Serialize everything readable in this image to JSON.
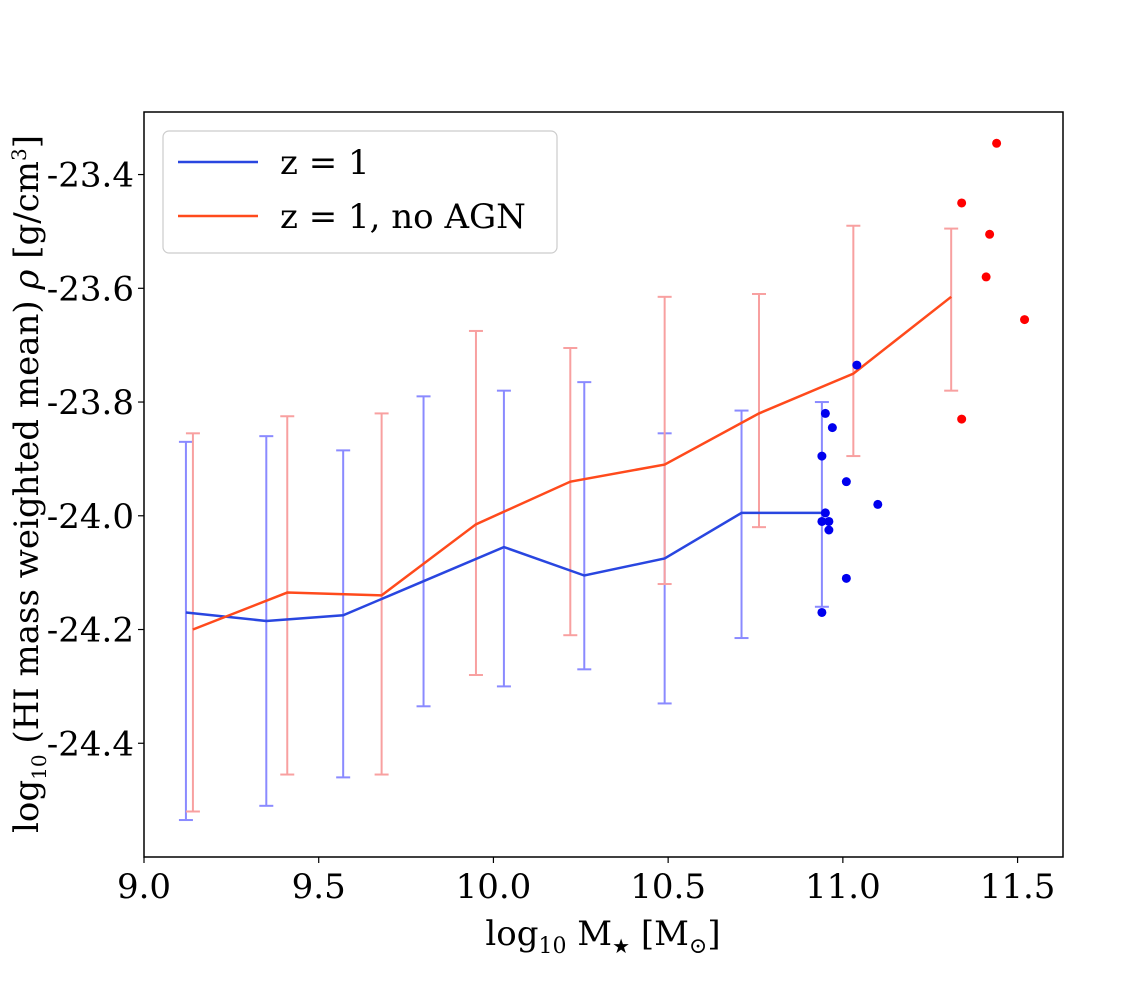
{
  "chart_data": {
    "type": "line",
    "title": "",
    "xlabel_parts": {
      "base": "log",
      "sub": "10",
      "rest": " M",
      "star": "★",
      "unit": " [M",
      "odot": "⊙",
      "close": "]"
    },
    "ylabel_parts": {
      "base": "log",
      "sub": "10",
      "rest": " (HI mass weighted mean) ",
      "rho": "ρ",
      "unit": " [g/cm",
      "sup": "3",
      "close": "]"
    },
    "xlim": [
      9.0,
      11.63
    ],
    "ylim": [
      -24.6,
      -23.29
    ],
    "xticks": [
      9.0,
      9.5,
      10.0,
      10.5,
      11.0,
      11.5
    ],
    "xtick_labels": [
      "9.0",
      "9.5",
      "10.0",
      "10.5",
      "11.0",
      "11.5"
    ],
    "yticks": [
      -24.4,
      -24.2,
      -24.0,
      -23.8,
      -23.6,
      -23.4
    ],
    "ytick_labels": [
      "-24.4",
      "-24.2",
      "-24.0",
      "-23.8",
      "-23.6",
      "-23.4"
    ],
    "legend_position": "top-left",
    "grid": false,
    "series": [
      {
        "name": "z = 1",
        "color": "#2946e0",
        "errorbar_color": "#8a8aff",
        "x": [
          9.12,
          9.35,
          9.57,
          9.8,
          10.03,
          10.26,
          10.49,
          10.71,
          10.94
        ],
        "y": [
          -24.17,
          -24.185,
          -24.175,
          -24.115,
          -24.055,
          -24.105,
          -24.075,
          -23.995,
          -23.995
        ],
        "err_low": [
          -24.535,
          -24.51,
          -24.46,
          -24.335,
          -24.3,
          -24.27,
          -24.33,
          -24.215,
          -24.16
        ],
        "err_high": [
          -23.87,
          -23.86,
          -23.885,
          -23.79,
          -23.78,
          -23.765,
          -23.855,
          -23.815,
          -23.8
        ]
      },
      {
        "name": "z = 1, no AGN",
        "color": "#ff4a1c",
        "errorbar_color": "#f8a0a0",
        "x": [
          9.14,
          9.41,
          9.68,
          9.95,
          10.22,
          10.49,
          10.76,
          11.03,
          11.31
        ],
        "y": [
          -24.2,
          -24.135,
          -24.14,
          -24.015,
          -23.94,
          -23.91,
          -23.82,
          -23.75,
          -23.615
        ],
        "err_low": [
          -24.52,
          -24.455,
          -24.455,
          -24.28,
          -24.21,
          -24.12,
          -24.02,
          -23.895,
          -23.78
        ],
        "err_high": [
          -23.855,
          -23.825,
          -23.82,
          -23.675,
          -23.705,
          -23.615,
          -23.61,
          -23.49,
          -23.495
        ]
      }
    ],
    "scatter": [
      {
        "color": "#0000ee",
        "x": [
          11.04,
          10.95,
          10.97,
          10.94,
          11.01,
          11.1,
          10.95,
          10.94,
          10.96,
          10.96,
          11.01,
          10.94
        ],
        "y": [
          -23.735,
          -23.82,
          -23.845,
          -23.895,
          -23.94,
          -23.98,
          -23.995,
          -24.01,
          -24.01,
          -24.025,
          -24.11,
          -24.17
        ]
      },
      {
        "color": "#ff0000",
        "x": [
          11.44,
          11.34,
          11.42,
          11.41,
          11.52,
          11.34
        ],
        "y": [
          -23.345,
          -23.45,
          -23.505,
          -23.58,
          -23.655,
          -23.83
        ]
      }
    ]
  }
}
